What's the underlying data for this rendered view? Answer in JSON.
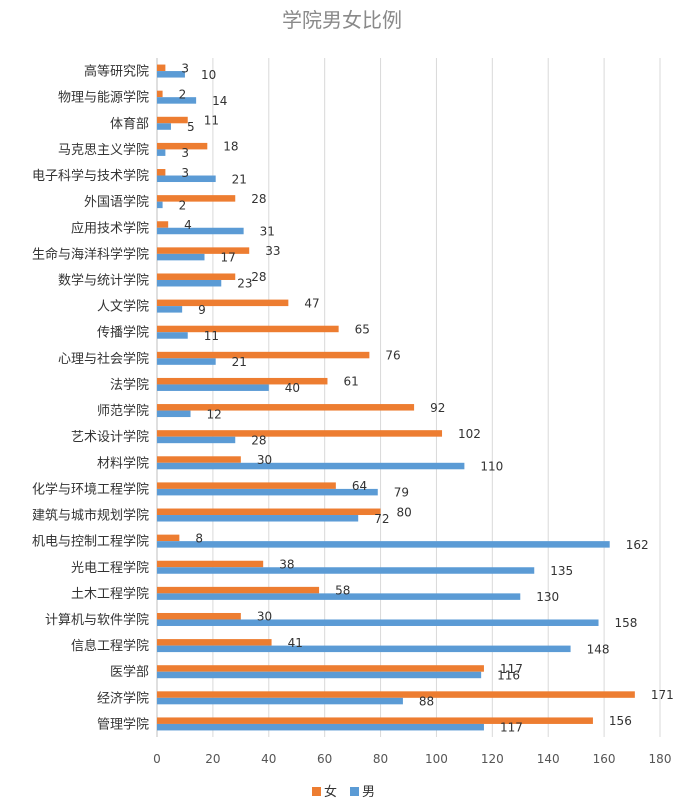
{
  "chart_data": {
    "type": "bar",
    "orientation": "horizontal",
    "title": "学院男女比例",
    "xlabel": "",
    "ylabel": "",
    "xlim": [
      0,
      180
    ],
    "x_ticks": [
      0,
      20,
      40,
      60,
      80,
      100,
      120,
      140,
      160,
      180
    ],
    "grid": "vertical",
    "legend_position": "bottom",
    "categories": [
      "高等研究院",
      "物理与能源学院",
      "体育部",
      "马克思主义学院",
      "电子科学与技术学院",
      "外国语学院",
      "应用技术学院",
      "生命与海洋科学学院",
      "数学与统计学院",
      "人文学院",
      "传播学院",
      "心理与社会学院",
      "法学院",
      "师范学院",
      "艺术设计学院",
      "材料学院",
      "化学与环境工程学院",
      "建筑与城市规划学院",
      "机电与控制工程学院",
      "光电工程学院",
      "土木工程学院",
      "计算机与软件学院",
      "信息工程学院",
      "医学部",
      "经济学院",
      "管理学院"
    ],
    "series": [
      {
        "name": "女",
        "color": "#ed7d31",
        "values": [
          3,
          2,
          11,
          18,
          3,
          28,
          4,
          33,
          28,
          47,
          65,
          76,
          61,
          92,
          102,
          30,
          64,
          80,
          8,
          38,
          58,
          30,
          41,
          117,
          171,
          156
        ]
      },
      {
        "name": "男",
        "color": "#5b9bd5",
        "values": [
          10,
          14,
          5,
          3,
          21,
          2,
          31,
          17,
          23,
          9,
          11,
          21,
          40,
          12,
          28,
          110,
          79,
          72,
          162,
          135,
          130,
          158,
          148,
          116,
          88,
          117
        ]
      }
    ]
  },
  "colors": {
    "grid": "#d9d9d9",
    "axis": "#bfbfbf",
    "title": "#8a8a8a"
  }
}
